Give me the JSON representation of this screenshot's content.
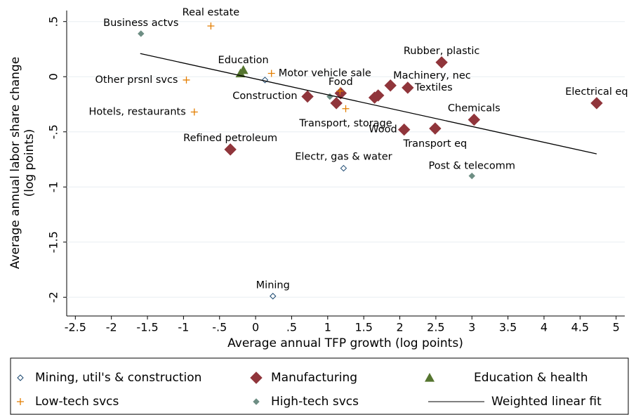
{
  "chart_data": {
    "type": "scatter",
    "xlabel": "Average annual TFP growth (log points)",
    "ylabel": [
      "Average annual labor share change",
      "(log points)"
    ],
    "xlim": [
      -2.62,
      5.12
    ],
    "ylim": [
      -2.17,
      0.6
    ],
    "xticks": [
      -2.5,
      -2,
      -1.5,
      -1,
      {
        "value": -0.5,
        "label": "-.5"
      },
      0,
      {
        "value": 0.5,
        "label": ".5"
      },
      1,
      1.5,
      2,
      2.5,
      3,
      3.5,
      4,
      4.5,
      5
    ],
    "yticks": [
      {
        "value": 0.5,
        "label": ".5"
      },
      0,
      {
        "value": -0.5,
        "label": "-.5"
      },
      -1,
      -1.5,
      -2
    ],
    "grid": true,
    "series": [
      {
        "name": "Mining, util's & construction",
        "color": "#1a476f",
        "marker": "diamond-hollow",
        "x": [
          0.13,
          1.22,
          0.24
        ],
        "values": [
          -0.03,
          -0.83,
          -1.99
        ],
        "labels": [
          "Construction",
          "Electr, gas  & water",
          "Mining"
        ]
      },
      {
        "name": "Manufacturing",
        "color": "#90353b",
        "marker": "diamond",
        "x": [
          2.58,
          1.87,
          2.11,
          4.73,
          3.03,
          2.06,
          2.49,
          -0.35,
          1.18,
          0.72,
          1.12,
          1.65,
          1.7
        ],
        "values": [
          0.13,
          -0.08,
          -0.1,
          -0.24,
          -0.39,
          -0.48,
          -0.47,
          -0.66,
          -0.15,
          -0.18,
          -0.24,
          -0.19,
          -0.17
        ],
        "labels": [
          "Rubber, plastic",
          "Machinery, nec",
          "Textiles",
          "Electrical eq",
          "Chemicals",
          "Wood",
          "Transport eq",
          "Refined petroleum",
          "Food",
          null,
          null,
          null,
          null
        ]
      },
      {
        "name": "Education & health",
        "color": "#55752f",
        "marker": "triangle",
        "x": [
          -0.17,
          -0.21
        ],
        "values": [
          0.06,
          0.03
        ],
        "labels": [
          "Education",
          null
        ]
      },
      {
        "name": "Low-tech svcs",
        "color": "#e37e00",
        "marker": "plus",
        "x": [
          -0.62,
          -0.96,
          -0.85,
          0.22,
          1.25,
          1.17
        ],
        "values": [
          0.46,
          -0.03,
          -0.32,
          0.03,
          -0.29,
          -0.13
        ],
        "labels": [
          "Real estate",
          "Other prsnl svcs",
          "Hotels, restaurants",
          "Motor vehicle sale",
          "Transport, storage",
          null
        ]
      },
      {
        "name": "High-tech svcs",
        "color": "#6e8e84",
        "marker": "diamond-small",
        "x": [
          -1.59,
          3.0,
          1.03
        ],
        "values": [
          0.39,
          -0.9,
          -0.18
        ],
        "labels": [
          "Business actvs",
          "Post & telecomm",
          null
        ]
      },
      {
        "name": "Weighted linear fit",
        "color": "#000000",
        "marker": "line",
        "x": [
          -1.6,
          4.73
        ],
        "values": [
          0.21,
          -0.7
        ]
      }
    ]
  }
}
